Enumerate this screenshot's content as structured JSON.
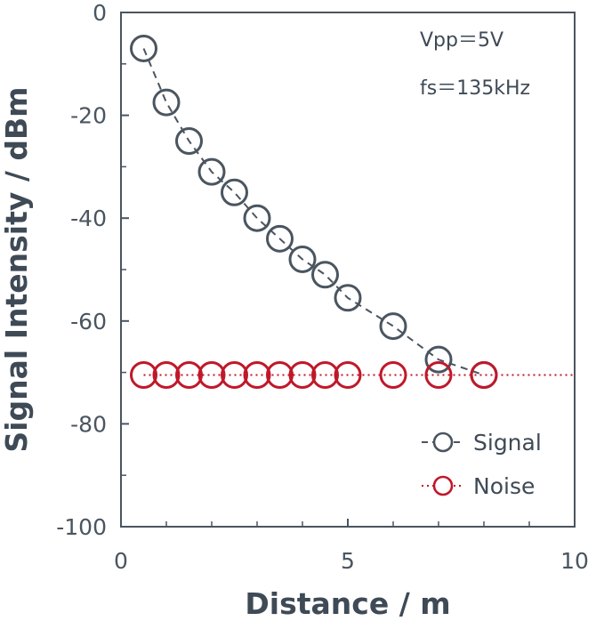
{
  "chart_data": {
    "type": "line",
    "xlabel": "Distance / m",
    "ylabel": "Signal Intensity / dBm",
    "xlim": [
      0,
      10
    ],
    "ylim": [
      -100,
      0
    ],
    "x_ticks": [
      "0",
      "5",
      "10"
    ],
    "y_ticks": [
      "0",
      "-20",
      "-40",
      "-60",
      "-80",
      "-100"
    ],
    "annotations": [
      "Vpp＝5V",
      "fs＝135kHz"
    ],
    "legend_position": "bottom-right",
    "grid": false,
    "series": [
      {
        "name": "Signal",
        "color": "#4a5560",
        "line_style": "dashed",
        "marker": "open-circle",
        "x": [
          0.5,
          1,
          1.5,
          2,
          2.5,
          3,
          3.5,
          4,
          4.5,
          5,
          6,
          7,
          8
        ],
        "y": [
          -7,
          -17.5,
          -25,
          -31,
          -35,
          -40,
          -44,
          -48,
          -51,
          -55.5,
          -61,
          -67.5,
          -70.5
        ]
      },
      {
        "name": "Noise",
        "color": "#c0182a",
        "line_style": "dotted",
        "marker": "open-circle",
        "x": [
          0.5,
          1,
          1.5,
          2,
          2.5,
          3,
          3.5,
          4,
          4.5,
          5,
          6,
          7,
          8
        ],
        "y": [
          -70.5,
          -70.5,
          -70.5,
          -70.5,
          -70.5,
          -70.5,
          -70.5,
          -70.5,
          -70.5,
          -70.5,
          -70.5,
          -70.5,
          -70.5
        ]
      }
    ]
  }
}
